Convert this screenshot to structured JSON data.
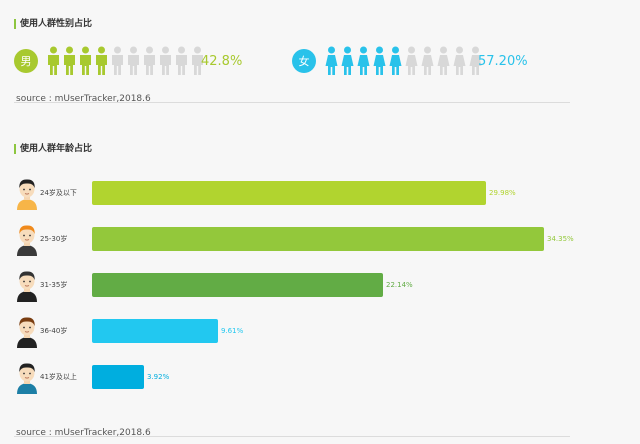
{
  "gender_section": {
    "title": "使用人群性别占比",
    "source": "source : mUserTracker,2018.6"
  },
  "age_section": {
    "title": "使用人群年龄占比",
    "source": "source : mUserTracker,2018.6"
  },
  "colors": {
    "male": "#a8c92f",
    "female": "#29c2ea",
    "inactive": "#d8d8d8",
    "accent_bar": "#8dc63f"
  },
  "chart_data": [
    {
      "type": "bar",
      "title": "使用人群性别占比",
      "categories": [
        "男",
        "女"
      ],
      "values": [
        42.8,
        57.2
      ],
      "value_labels": [
        "42.8%",
        "57.20%"
      ],
      "figure_count": 10,
      "filled_figures": [
        4,
        5
      ],
      "icons": [
        "male-person-icon",
        "female-person-icon"
      ]
    },
    {
      "type": "bar",
      "title": "使用人群年龄占比",
      "categories": [
        "24岁及以下",
        "25-30岁",
        "31-35岁",
        "36-40岁",
        "41岁及以上"
      ],
      "values": [
        29.98,
        34.35,
        22.14,
        9.61,
        3.92
      ],
      "value_labels": [
        "29.98%",
        "34.35%",
        "22.14%",
        "9.61%",
        "3.92%"
      ],
      "colors": [
        "#b1d42f",
        "#93c83b",
        "#62ac45",
        "#22c8f0",
        "#00aedf"
      ],
      "xlim": [
        0,
        34.35
      ]
    }
  ]
}
